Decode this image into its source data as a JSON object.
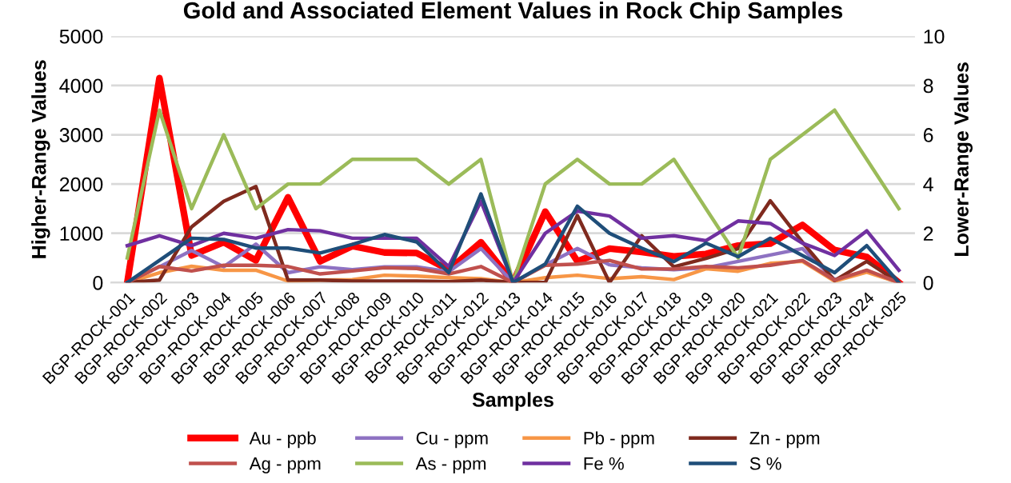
{
  "chart_data": {
    "type": "line",
    "title": "Gold and Associated Element Values in Rock Chip Samples",
    "xlabel": "Samples",
    "ylabel": "Higher-Range Values",
    "y2label": "Lower-Range Values",
    "categories": [
      "BGP-ROCK-001",
      "BGP-ROCK-002",
      "BGP-ROCK-003",
      "BGP-ROCK-004",
      "BGP-ROCK-005",
      "BGP-ROCK-006",
      "BGP-ROCK-007",
      "BGP-ROCK-008",
      "BGP-ROCK-009",
      "BGP-ROCK-010",
      "BGP-ROCK-011",
      "BGP-ROCK-012",
      "BGP-ROCK-013",
      "BGP-ROCK-014",
      "BGP-ROCK-015",
      "BGP-ROCK-016",
      "BGP-ROCK-017",
      "BGP-ROCK-018",
      "BGP-ROCK-019",
      "BGP-ROCK-020",
      "BGP-ROCK-021",
      "BGP-ROCK-022",
      "BGP-ROCK-023",
      "BGP-ROCK-024",
      "BGP-ROCK-025"
    ],
    "ylim": [
      0,
      5000
    ],
    "yticks": [
      0,
      1000,
      2000,
      3000,
      4000,
      5000
    ],
    "y2lim": [
      0,
      10
    ],
    "y2ticks": [
      0,
      2,
      4,
      6,
      8,
      10
    ],
    "grid": "y",
    "legend": "bottom",
    "marker": "none",
    "line_style": "solid",
    "series": [
      {
        "name": "Au - ppb",
        "color": "#ff0000",
        "values": [
          0,
          4150,
          550,
          820,
          450,
          1730,
          430,
          740,
          610,
          600,
          260,
          820,
          0,
          1440,
          430,
          690,
          620,
          530,
          580,
          750,
          790,
          1170,
          660,
          520,
          0
        ]
      },
      {
        "name": "Cu - ppm",
        "color": "#8e72c2",
        "values": [
          0,
          320,
          650,
          320,
          780,
          200,
          320,
          260,
          320,
          320,
          220,
          690,
          0,
          360,
          690,
          360,
          300,
          260,
          300,
          430,
          560,
          690,
          60,
          230,
          0
        ]
      },
      {
        "name": "Pb - ppm",
        "color": "#f79646",
        "values": [
          0,
          200,
          330,
          250,
          250,
          30,
          50,
          60,
          150,
          130,
          100,
          80,
          0,
          100,
          150,
          80,
          120,
          60,
          280,
          230,
          390,
          430,
          30,
          210,
          0
        ]
      },
      {
        "name": "Zn - ppm",
        "color": "#7f2a1e",
        "values": [
          0,
          50,
          1130,
          1650,
          1950,
          50,
          50,
          30,
          30,
          30,
          20,
          50,
          0,
          0,
          1360,
          0,
          950,
          320,
          490,
          690,
          1660,
          820,
          40,
          430,
          0
        ]
      },
      {
        "name": "Ag - ppm",
        "color": "#c0504d",
        "axis": "y2",
        "values": [
          0,
          0.65,
          0.47,
          0.7,
          0.7,
          0.65,
          0.35,
          0.47,
          0.6,
          0.57,
          0.35,
          0.65,
          0,
          0.7,
          0.75,
          0.9,
          0.55,
          0.55,
          0.65,
          0.6,
          0.7,
          0.9,
          0.1,
          0.5,
          0
        ]
      },
      {
        "name": "As - ppm",
        "color": "#9bbb59",
        "axis": "y2",
        "values": [
          1,
          7,
          3,
          6,
          3,
          4,
          4,
          5,
          5,
          5,
          4,
          5,
          0,
          4,
          5,
          4,
          4,
          5,
          3,
          1,
          5,
          6,
          7,
          5,
          3
        ]
      },
      {
        "name": "Fe %",
        "color": "#7030a0",
        "axis": "y2",
        "values": [
          1.5,
          1.9,
          1.5,
          2.0,
          1.8,
          2.15,
          2.1,
          1.8,
          1.8,
          1.8,
          0.65,
          3.3,
          0,
          2.0,
          2.9,
          2.7,
          1.8,
          1.9,
          1.7,
          2.5,
          2.4,
          1.6,
          1.1,
          2.1,
          0.5
        ]
      },
      {
        "name": "S %",
        "color": "#1f4e79",
        "axis": "y2",
        "values": [
          0,
          0.9,
          1.8,
          1.75,
          1.4,
          1.4,
          1.2,
          1.55,
          1.95,
          1.65,
          0.4,
          3.6,
          0,
          0.75,
          3.1,
          2.0,
          1.4,
          0.85,
          1.6,
          1.05,
          1.8,
          1.1,
          0.4,
          1.5,
          0
        ]
      }
    ]
  }
}
